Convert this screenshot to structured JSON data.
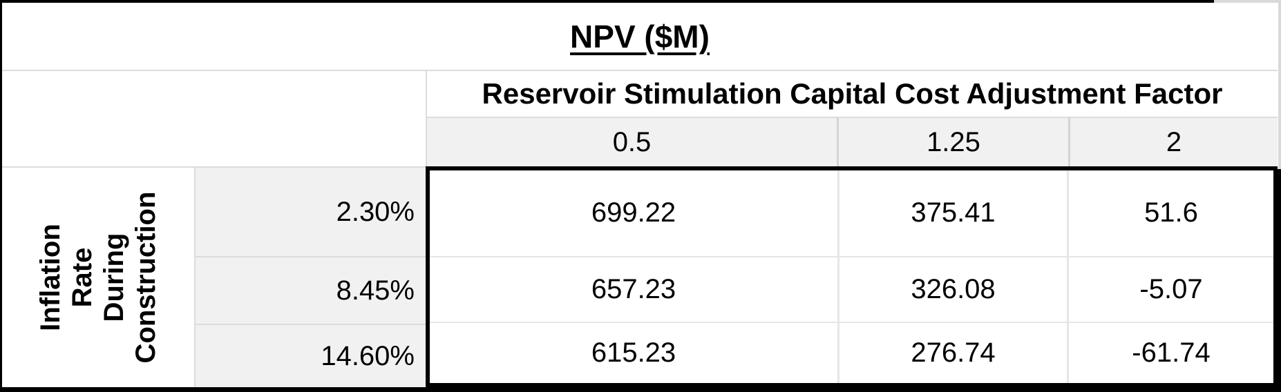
{
  "title": "NPV ($M)",
  "axes": {
    "column_header": "Reservoir Stimulation Capital Cost Adjustment Factor",
    "row_header": "Inflation Rate During Construction",
    "row_header_lines": [
      "Inflation",
      "Rate",
      "During",
      "Construction"
    ]
  },
  "columns": [
    "0.5",
    "1.25",
    "2"
  ],
  "rows": [
    {
      "label": "2.30%",
      "values": [
        "699.22",
        "375.41",
        "51.6"
      ]
    },
    {
      "label": "8.45%",
      "values": [
        "657.23",
        "326.08",
        "-5.07"
      ]
    },
    {
      "label": "14.60%",
      "values": [
        "615.23",
        "276.74",
        "-61.74"
      ]
    }
  ],
  "chart_data": {
    "type": "table",
    "title": "NPV ($M)",
    "column_variable": "Reservoir Stimulation Capital Cost Adjustment Factor",
    "row_variable": "Inflation Rate During Construction",
    "columns": [
      0.5,
      1.25,
      2
    ],
    "rows": [
      "2.30%",
      "8.45%",
      "14.60%"
    ],
    "values": [
      [
        699.22,
        375.41,
        51.6
      ],
      [
        657.23,
        326.08,
        -5.07
      ],
      [
        615.23,
        276.74,
        -61.74
      ]
    ]
  },
  "colors": {
    "border_heavy": "#000000",
    "grid_line": "#dcdcdc",
    "shaded_cell": "#f1f1f1",
    "background": "#ffffff",
    "text": "#000000"
  }
}
